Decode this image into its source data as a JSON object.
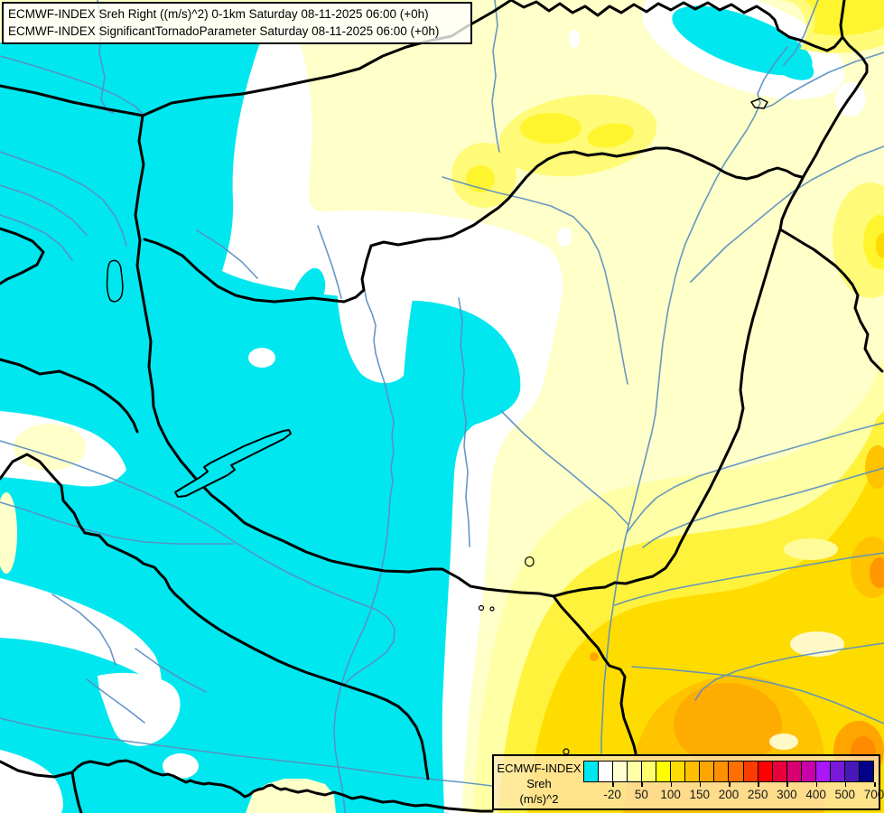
{
  "titles": {
    "line1": "ECMWF-INDEX Sreh Right ((m/s)^2) 0-1km Saturday 08-11-2025 06:00 (+0h)",
    "line2": "ECMWF-INDEX SignificantTornadoParameter Saturday 08-11-2025 06:00 (+0h)"
  },
  "legend": {
    "product": "ECMWF-INDEX",
    "parameter": "Sreh",
    "units": "(m/s)^2",
    "colors": [
      "#00E7EF",
      "#FFFFFF",
      "#FFFFD0",
      "#FFFFA8",
      "#FFFF70",
      "#FFFF00",
      "#FFDC00",
      "#FFC000",
      "#FFA500",
      "#FF9000",
      "#FF7000",
      "#FF3C00",
      "#FF0000",
      "#E8003C",
      "#D80070",
      "#C800A8",
      "#A818F8",
      "#7818D8",
      "#4818B8",
      "#000088"
    ],
    "ticks": [
      {
        "index": 1,
        "label": "-20"
      },
      {
        "index": 3,
        "label": "50"
      },
      {
        "index": 5,
        "label": "100"
      },
      {
        "index": 7,
        "label": "150"
      },
      {
        "index": 9,
        "label": "200"
      },
      {
        "index": 11,
        "label": "250"
      },
      {
        "index": 13,
        "label": "300"
      },
      {
        "index": 15,
        "label": "400"
      },
      {
        "index": 17,
        "label": "500"
      },
      {
        "index": 19,
        "label": "700"
      }
    ]
  },
  "map": {
    "palette": {
      "cyan": "#00E7EF",
      "white": "#FFFFFF",
      "cream": "#FFFFC9",
      "paleYellow": "#FFFFA6",
      "lightPatch": "#FFFB78",
      "brightYellow": "#FFF52E",
      "yellow": "#FFF23C",
      "gold": "#FFDC00",
      "amber": "#FFC300",
      "orange": "#FFAC00",
      "deepOrange": "#FF9800",
      "darkOrange": "#FF8A00",
      "orangeSpot": "#FFA500",
      "paleSpot": "#FFF9C8",
      "paleSpot2": "#FFFA9A",
      "goldCore": "#FFD900",
      "river": "#5A8FC2",
      "border": "#000000"
    }
  }
}
